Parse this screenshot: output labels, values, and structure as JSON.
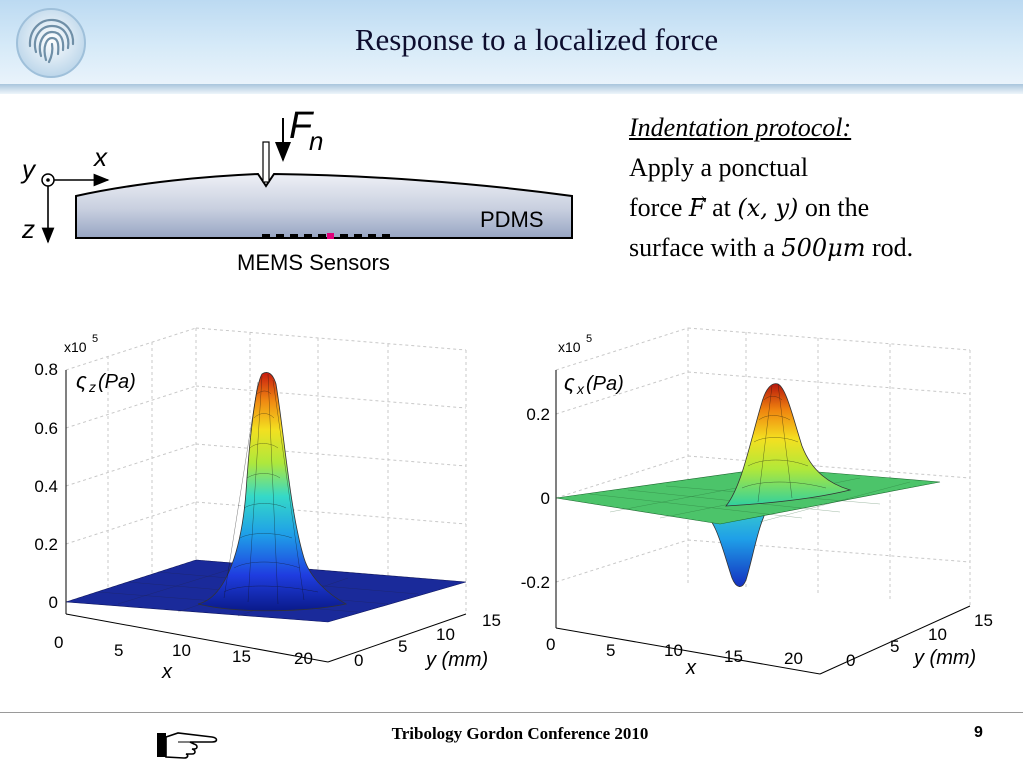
{
  "title": "Response to a localized force",
  "diagram": {
    "force_label": "F",
    "force_subscript": "n",
    "axis_y": "y",
    "axis_x": "x",
    "axis_z": "z",
    "material": "PDMS",
    "sensors_label": "MEMS Sensors"
  },
  "protocol": {
    "heading": "Indentation protocol:",
    "line1": "Apply a ponctual",
    "force_word": "force",
    "force_vec": "F",
    "at_word": "at",
    "coords": "(x, y)",
    "on_the": "on the",
    "surface_with_a": "surface with a",
    "rod_size": "500μm",
    "rod_word": "rod."
  },
  "plots": [
    {
      "multiplier": "x10",
      "exponent": "5",
      "zlabel_sym": "ς",
      "zlabel_sub": "z",
      "zlabel_unit": "(Pa)",
      "zticks": [
        "0.8",
        "0.6",
        "0.4",
        "0.2",
        "0"
      ],
      "xticks": [
        "0",
        "5",
        "10",
        "15",
        "20"
      ],
      "xlabel": "x",
      "yticks": [
        "0",
        "5",
        "10",
        "15"
      ],
      "ylabel": "y (mm)"
    },
    {
      "multiplier": "x10",
      "exponent": "5",
      "zlabel_sym": "ς",
      "zlabel_sub": "x",
      "zlabel_unit": "(Pa)",
      "zticks": [
        "0.2",
        "0",
        "-0.2"
      ],
      "xticks": [
        "0",
        "5",
        "10",
        "15",
        "20"
      ],
      "xlabel": "x",
      "yticks": [
        "0",
        "5",
        "10",
        "15"
      ],
      "ylabel": "y (mm)"
    }
  ],
  "footer": {
    "conference": "Tribology Gordon Conference 2010",
    "page_number": "9"
  }
}
